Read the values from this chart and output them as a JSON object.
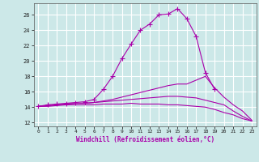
{
  "xlabel": "Windchill (Refroidissement éolien,°C)",
  "background_color": "#cce8e8",
  "grid_color": "#ffffff",
  "line_color": "#aa00aa",
  "xlim": [
    -0.5,
    23.5
  ],
  "ylim": [
    11.5,
    27.5
  ],
  "xticks": [
    0,
    1,
    2,
    3,
    4,
    5,
    6,
    7,
    8,
    9,
    10,
    11,
    12,
    13,
    14,
    15,
    16,
    17,
    18,
    19,
    20,
    21,
    22,
    23
  ],
  "yticks": [
    12,
    14,
    16,
    18,
    20,
    22,
    24,
    26
  ],
  "series": [
    {
      "x": [
        0,
        1,
        2,
        3,
        4,
        5,
        6,
        7,
        8,
        9,
        10,
        11,
        12,
        13,
        14,
        15,
        16,
        17,
        18,
        19,
        20,
        21,
        22,
        23
      ],
      "y": [
        14.1,
        14.3,
        14.4,
        14.5,
        14.6,
        14.7,
        15.0,
        16.3,
        18.0,
        20.3,
        22.2,
        24.0,
        24.8,
        26.0,
        26.1,
        26.8,
        25.5,
        23.2,
        18.5,
        16.3,
        null,
        null,
        null,
        null
      ],
      "marker": "+"
    },
    {
      "x": [
        0,
        1,
        2,
        3,
        4,
        5,
        6,
        7,
        8,
        9,
        10,
        11,
        12,
        13,
        14,
        15,
        16,
        17,
        18,
        19,
        20,
        21,
        22,
        23
      ],
      "y": [
        14.1,
        14.2,
        14.3,
        14.4,
        14.5,
        14.5,
        14.6,
        14.8,
        15.0,
        15.3,
        15.6,
        15.9,
        16.2,
        16.5,
        16.8,
        17.0,
        17.0,
        17.5,
        18.0,
        16.5,
        15.3,
        14.3,
        13.5,
        12.3
      ],
      "marker": null
    },
    {
      "x": [
        0,
        1,
        2,
        3,
        4,
        5,
        6,
        7,
        8,
        9,
        10,
        11,
        12,
        13,
        14,
        15,
        16,
        17,
        18,
        19,
        20,
        21,
        22,
        23
      ],
      "y": [
        14.1,
        14.2,
        14.3,
        14.4,
        14.5,
        14.5,
        14.6,
        14.7,
        14.8,
        14.9,
        15.0,
        15.1,
        15.2,
        15.3,
        15.4,
        15.4,
        15.3,
        15.2,
        14.9,
        14.6,
        14.3,
        13.5,
        12.8,
        12.2
      ],
      "marker": null
    },
    {
      "x": [
        0,
        1,
        2,
        3,
        4,
        5,
        6,
        7,
        8,
        9,
        10,
        11,
        12,
        13,
        14,
        15,
        16,
        17,
        18,
        19,
        20,
        21,
        22,
        23
      ],
      "y": [
        14.1,
        14.1,
        14.2,
        14.3,
        14.3,
        14.3,
        14.3,
        14.4,
        14.4,
        14.4,
        14.5,
        14.4,
        14.4,
        14.4,
        14.3,
        14.3,
        14.2,
        14.1,
        14.0,
        13.7,
        13.3,
        13.0,
        12.5,
        12.2
      ],
      "marker": null
    }
  ]
}
